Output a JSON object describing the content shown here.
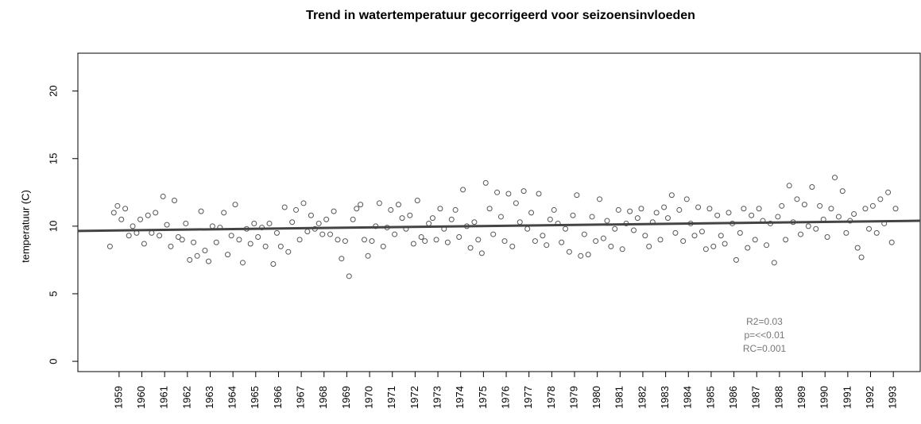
{
  "chart_data": {
    "type": "scatter",
    "title": "Trend in watertemperatuur gecorrigeerd voor seizoensinvloeden",
    "y_label": "temperatuur (C)",
    "xlim": [
      1957.19,
      1994.18
    ],
    "ylim": [
      -0.76,
      22.8
    ],
    "xticks": [
      1959,
      1960,
      1961,
      1962,
      1963,
      1964,
      1965,
      1966,
      1967,
      1968,
      1969,
      1970,
      1971,
      1972,
      1973,
      1974,
      1975,
      1976,
      1977,
      1978,
      1979,
      1980,
      1981,
      1982,
      1983,
      1984,
      1985,
      1986,
      1987,
      1988,
      1989,
      1990,
      1991,
      1992,
      1993
    ],
    "yticks": [
      0,
      5,
      10,
      15,
      20
    ],
    "color": "#555555",
    "x": [
      1958.6,
      1958.77,
      1958.93,
      1959.1,
      1959.27,
      1959.43,
      1959.6,
      1959.77,
      1959.93,
      1960.1,
      1960.27,
      1960.43,
      1960.6,
      1960.77,
      1960.93,
      1961.1,
      1961.27,
      1961.43,
      1961.6,
      1961.77,
      1961.93,
      1962.1,
      1962.27,
      1962.43,
      1962.6,
      1962.77,
      1962.93,
      1963.1,
      1963.27,
      1963.43,
      1963.6,
      1963.77,
      1963.93,
      1964.1,
      1964.27,
      1964.43,
      1964.6,
      1964.77,
      1964.93,
      1965.1,
      1965.27,
      1965.43,
      1965.6,
      1965.77,
      1965.93,
      1966.1,
      1966.27,
      1966.43,
      1966.6,
      1966.77,
      1966.93,
      1967.1,
      1967.27,
      1967.43,
      1967.6,
      1967.77,
      1967.93,
      1968.1,
      1968.27,
      1968.43,
      1968.6,
      1968.77,
      1968.93,
      1969.1,
      1969.27,
      1969.43,
      1969.6,
      1969.77,
      1969.93,
      1970.1,
      1970.27,
      1970.43,
      1970.6,
      1970.77,
      1970.93,
      1971.1,
      1971.27,
      1971.43,
      1971.6,
      1971.77,
      1971.93,
      1972.1,
      1972.27,
      1972.43,
      1972.6,
      1972.77,
      1972.93,
      1973.1,
      1973.27,
      1973.43,
      1973.6,
      1973.77,
      1973.93,
      1974.1,
      1974.27,
      1974.43,
      1974.6,
      1974.77,
      1974.93,
      1975.1,
      1975.27,
      1975.43,
      1975.6,
      1975.77,
      1975.93,
      1976.1,
      1976.27,
      1976.43,
      1976.6,
      1976.77,
      1976.93,
      1977.1,
      1977.27,
      1977.43,
      1977.6,
      1977.77,
      1977.93,
      1978.1,
      1978.27,
      1978.43,
      1978.6,
      1978.77,
      1978.93,
      1979.1,
      1979.27,
      1979.43,
      1979.6,
      1979.77,
      1979.93,
      1980.1,
      1980.27,
      1980.43,
      1980.6,
      1980.77,
      1980.93,
      1981.1,
      1981.27,
      1981.43,
      1981.6,
      1981.77,
      1981.93,
      1982.1,
      1982.27,
      1982.43,
      1982.6,
      1982.77,
      1982.93,
      1983.1,
      1983.27,
      1983.43,
      1983.6,
      1983.77,
      1983.93,
      1984.1,
      1984.27,
      1984.43,
      1984.6,
      1984.77,
      1984.93,
      1985.1,
      1985.27,
      1985.43,
      1985.6,
      1985.77,
      1985.93,
      1986.1,
      1986.27,
      1986.43,
      1986.6,
      1986.77,
      1986.93,
      1987.1,
      1987.27,
      1987.43,
      1987.6,
      1987.77,
      1987.93,
      1988.1,
      1988.27,
      1988.43,
      1988.6,
      1988.77,
      1988.93,
      1989.1,
      1989.27,
      1989.43,
      1989.6,
      1989.77,
      1989.93,
      1990.1,
      1990.27,
      1990.43,
      1990.6,
      1990.77,
      1990.93,
      1991.1,
      1991.27,
      1991.43,
      1991.6,
      1991.77,
      1991.93,
      1992.1,
      1992.27,
      1992.43,
      1992.6,
      1992.77,
      1992.93,
      1993.1
    ],
    "values": [
      8.5,
      11.0,
      11.5,
      10.5,
      11.3,
      9.3,
      10.0,
      9.5,
      10.5,
      8.7,
      10.8,
      9.5,
      11.0,
      9.3,
      12.2,
      10.1,
      8.5,
      11.9,
      9.2,
      9.0,
      10.2,
      7.5,
      8.8,
      7.8,
      11.1,
      8.2,
      7.4,
      10.0,
      8.8,
      9.9,
      11.0,
      7.9,
      9.3,
      11.6,
      9.0,
      7.3,
      9.8,
      8.7,
      10.2,
      9.2,
      9.9,
      8.5,
      10.2,
      7.2,
      9.5,
      8.5,
      11.4,
      8.1,
      10.3,
      11.2,
      9.0,
      11.7,
      9.6,
      10.8,
      9.8,
      10.2,
      9.4,
      10.5,
      9.4,
      11.1,
      9.0,
      7.6,
      8.9,
      6.3,
      10.5,
      11.3,
      11.6,
      9.0,
      7.8,
      8.9,
      10.0,
      11.7,
      8.5,
      9.9,
      11.2,
      9.4,
      11.6,
      10.6,
      9.8,
      10.8,
      8.7,
      11.9,
      9.2,
      8.9,
      10.2,
      10.6,
      9.0,
      11.3,
      9.8,
      8.8,
      10.5,
      11.2,
      9.2,
      12.7,
      10.0,
      8.4,
      10.3,
      9.0,
      8.0,
      13.2,
      11.3,
      9.4,
      12.5,
      10.7,
      8.9,
      12.4,
      8.5,
      11.7,
      10.3,
      12.6,
      9.8,
      11.0,
      8.9,
      12.4,
      9.3,
      8.6,
      10.5,
      11.2,
      10.2,
      8.8,
      9.8,
      8.1,
      10.8,
      12.3,
      7.8,
      9.4,
      7.9,
      10.7,
      8.9,
      12.0,
      9.1,
      10.4,
      8.5,
      9.8,
      11.2,
      8.3,
      10.2,
      11.1,
      9.7,
      10.6,
      11.3,
      9.3,
      8.5,
      10.3,
      11.0,
      9.0,
      11.4,
      10.6,
      12.3,
      9.5,
      11.2,
      8.9,
      12.0,
      10.2,
      9.3,
      11.4,
      9.6,
      8.3,
      11.3,
      8.5,
      10.8,
      9.3,
      8.7,
      11.0,
      10.2,
      7.5,
      9.5,
      11.3,
      8.4,
      10.8,
      9.0,
      11.3,
      10.4,
      8.6,
      10.2,
      7.3,
      10.7,
      11.5,
      9.0,
      13.0,
      10.3,
      12.0,
      9.4,
      11.6,
      10.0,
      12.9,
      9.8,
      11.5,
      10.5,
      9.2,
      11.3,
      13.6,
      10.7,
      12.6,
      9.5,
      10.4,
      10.9,
      8.4,
      7.7,
      11.3,
      9.8,
      11.5,
      9.5,
      12.0,
      10.2,
      12.5,
      8.8,
      11.3
    ],
    "trend": {
      "color": "#444444",
      "x": [
        1957.19,
        1994.18
      ],
      "values": [
        9.65,
        10.4
      ]
    },
    "annotations": [
      "R2=0.03",
      "p=<<0.01",
      "RC=0.001"
    ]
  }
}
